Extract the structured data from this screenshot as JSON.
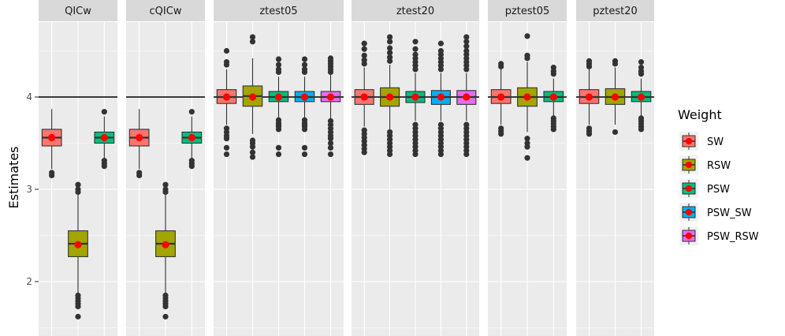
{
  "chart_data": {
    "type": "boxplot",
    "ylabel": "Estimates",
    "xlabel": "",
    "ylim": [
      1.45,
      4.9
    ],
    "yticks": [
      2,
      3,
      4
    ],
    "reference_line": 4,
    "legend": {
      "title": "Weight",
      "position": "right",
      "items": [
        {
          "name": "SW",
          "color": "#F8766D"
        },
        {
          "name": "RSW",
          "color": "#A3A500"
        },
        {
          "name": "PSW",
          "color": "#00BF7D"
        },
        {
          "name": "PSW_SW",
          "color": "#00B0F6"
        },
        {
          "name": "PSW_RSW",
          "color": "#E76BF3"
        }
      ]
    },
    "mean_point_color": "#FF0000",
    "panels": [
      {
        "label": "QICw",
        "boxes": [
          {
            "weight": "SW",
            "q1": 3.47,
            "median": 3.56,
            "q3": 3.65,
            "whisker_low": 3.22,
            "whisker_high": 3.87,
            "mean": 3.56,
            "outliers": [
              3.18,
              3.15
            ]
          },
          {
            "weight": "RSW",
            "q1": 2.27,
            "median": 2.41,
            "q3": 2.55,
            "whisker_low": 1.87,
            "whisker_high": 2.95,
            "mean": 2.4,
            "outliers": [
              2.97,
              3.0,
              3.05,
              1.85,
              1.82,
              1.79,
              1.76,
              1.73,
              1.62
            ]
          },
          {
            "weight": "PSW",
            "q1": 3.5,
            "median": 3.56,
            "q3": 3.62,
            "whisker_low": 3.33,
            "whisker_high": 3.79,
            "mean": 3.56,
            "outliers": [
              3.31,
              3.28,
              3.25,
              3.84
            ]
          }
        ]
      },
      {
        "label": "cQICw",
        "boxes": [
          {
            "weight": "SW",
            "q1": 3.47,
            "median": 3.56,
            "q3": 3.65,
            "whisker_low": 3.22,
            "whisker_high": 3.87,
            "mean": 3.56,
            "outliers": [
              3.18,
              3.15
            ]
          },
          {
            "weight": "RSW",
            "q1": 2.27,
            "median": 2.41,
            "q3": 2.55,
            "whisker_low": 1.87,
            "whisker_high": 2.95,
            "mean": 2.4,
            "outliers": [
              2.97,
              3.0,
              3.05,
              1.85,
              1.82,
              1.79,
              1.76,
              1.73,
              1.62
            ]
          },
          {
            "weight": "PSW",
            "q1": 3.5,
            "median": 3.56,
            "q3": 3.62,
            "whisker_low": 3.33,
            "whisker_high": 3.79,
            "mean": 3.56,
            "outliers": [
              3.31,
              3.28,
              3.25,
              3.84
            ]
          }
        ]
      },
      {
        "label": "ztest05",
        "boxes": [
          {
            "weight": "SW",
            "q1": 3.93,
            "median": 4.0,
            "q3": 4.08,
            "whisker_low": 3.7,
            "whisker_high": 4.3,
            "mean": 4.0,
            "outliers": [
              3.66,
              3.62,
              3.58,
              3.55,
              3.45,
              3.38,
              4.35,
              4.38,
              4.5
            ]
          },
          {
            "weight": "RSW",
            "q1": 3.9,
            "median": 4.01,
            "q3": 4.12,
            "whisker_low": 3.6,
            "whisker_high": 4.42,
            "mean": 4.0,
            "outliers": [
              3.53,
              3.5,
              3.46,
              3.4,
              3.35,
              4.6,
              4.65
            ]
          },
          {
            "weight": "PSW",
            "q1": 3.95,
            "median": 4.0,
            "q3": 4.06,
            "whisker_low": 3.78,
            "whisker_high": 4.22,
            "mean": 4.0,
            "outliers": [
              3.75,
              3.72,
              3.7,
              3.68,
              3.65,
              3.45,
              3.38,
              4.27,
              4.3,
              4.35,
              4.41
            ]
          },
          {
            "weight": "PSW_SW",
            "q1": 3.95,
            "median": 4.0,
            "q3": 4.06,
            "whisker_low": 3.78,
            "whisker_high": 4.22,
            "mean": 4.0,
            "outliers": [
              3.75,
              3.72,
              3.7,
              3.68,
              3.65,
              3.45,
              3.38,
              4.27,
              4.3,
              4.35,
              4.41
            ]
          },
          {
            "weight": "PSW_RSW",
            "q1": 3.95,
            "median": 4.0,
            "q3": 4.06,
            "whisker_low": 3.76,
            "whisker_high": 4.24,
            "mean": 4.0,
            "outliers": [
              3.74,
              3.7,
              3.66,
              3.62,
              3.58,
              3.55,
              3.5,
              3.45,
              3.38,
              4.27,
              4.3,
              4.33,
              4.36,
              4.39,
              4.42
            ]
          }
        ]
      },
      {
        "label": "ztest20",
        "boxes": [
          {
            "weight": "SW",
            "q1": 3.92,
            "median": 4.0,
            "q3": 4.08,
            "whisker_low": 3.68,
            "whisker_high": 4.32,
            "mean": 4.0,
            "outliers": [
              3.64,
              3.6,
              3.56,
              3.52,
              3.48,
              3.44,
              3.4,
              4.36,
              4.4,
              4.45,
              4.52,
              4.58
            ]
          },
          {
            "weight": "RSW",
            "q1": 3.9,
            "median": 4.0,
            "q3": 4.1,
            "whisker_low": 3.65,
            "whisker_high": 4.35,
            "mean": 4.0,
            "outliers": [
              3.62,
              3.58,
              3.54,
              3.5,
              3.46,
              3.42,
              3.38,
              4.39,
              4.43,
              4.48,
              4.53,
              4.6,
              4.65
            ]
          },
          {
            "weight": "PSW",
            "q1": 3.94,
            "median": 4.0,
            "q3": 4.06,
            "whisker_low": 3.74,
            "whisker_high": 4.26,
            "mean": 4.0,
            "outliers": [
              3.7,
              3.66,
              3.62,
              3.58,
              3.54,
              3.5,
              3.46,
              3.42,
              3.38,
              4.3,
              4.34,
              4.38,
              4.42,
              4.46,
              4.52,
              4.6
            ]
          },
          {
            "weight": "PSW_SW",
            "q1": 3.92,
            "median": 4.0,
            "q3": 4.07,
            "whisker_low": 3.74,
            "whisker_high": 4.26,
            "mean": 4.0,
            "outliers": [
              3.7,
              3.66,
              3.62,
              3.58,
              3.54,
              3.5,
              3.46,
              3.42,
              3.38,
              4.3,
              4.34,
              4.38,
              4.42,
              4.46,
              4.5,
              4.58
            ]
          },
          {
            "weight": "PSW_RSW",
            "q1": 3.92,
            "median": 4.0,
            "q3": 4.07,
            "whisker_low": 3.74,
            "whisker_high": 4.26,
            "mean": 4.0,
            "outliers": [
              3.7,
              3.66,
              3.62,
              3.58,
              3.54,
              3.5,
              3.46,
              3.42,
              3.38,
              4.3,
              4.34,
              4.38,
              4.42,
              4.46,
              4.5,
              4.55,
              4.6,
              4.65
            ]
          }
        ]
      },
      {
        "label": "pztest05",
        "boxes": [
          {
            "weight": "SW",
            "q1": 3.93,
            "median": 4.0,
            "q3": 4.08,
            "whisker_low": 3.7,
            "whisker_high": 4.3,
            "mean": 4.0,
            "outliers": [
              3.66,
              3.63,
              3.6,
              4.33,
              4.36
            ]
          },
          {
            "weight": "RSW",
            "q1": 3.9,
            "median": 4.0,
            "q3": 4.1,
            "whisker_low": 3.62,
            "whisker_high": 4.38,
            "mean": 4.0,
            "outliers": [
              3.55,
              3.5,
              3.46,
              3.34,
              4.42,
              4.45,
              4.66
            ]
          },
          {
            "weight": "PSW",
            "q1": 3.95,
            "median": 4.0,
            "q3": 4.06,
            "whisker_low": 3.8,
            "whisker_high": 4.2,
            "mean": 4.0,
            "outliers": [
              3.77,
              3.74,
              3.71,
              3.68,
              3.65,
              4.25,
              4.28,
              4.32
            ]
          }
        ]
      },
      {
        "label": "pztest20",
        "boxes": [
          {
            "weight": "SW",
            "q1": 3.93,
            "median": 4.0,
            "q3": 4.08,
            "whisker_low": 3.7,
            "whisker_high": 4.3,
            "mean": 4.0,
            "outliers": [
              3.66,
              3.63,
              3.6,
              4.33,
              4.36,
              4.39
            ]
          },
          {
            "weight": "RSW",
            "q1": 3.92,
            "median": 4.0,
            "q3": 4.09,
            "whisker_low": 3.7,
            "whisker_high": 4.32,
            "mean": 4.0,
            "outliers": [
              3.62,
              4.36,
              4.39
            ]
          },
          {
            "weight": "PSW",
            "q1": 3.95,
            "median": 4.0,
            "q3": 4.06,
            "whisker_low": 3.8,
            "whisker_high": 4.2,
            "mean": 4.0,
            "outliers": [
              3.77,
              3.74,
              3.71,
              3.68,
              3.65,
              4.25,
              4.28,
              4.32,
              4.38
            ]
          }
        ]
      }
    ]
  }
}
